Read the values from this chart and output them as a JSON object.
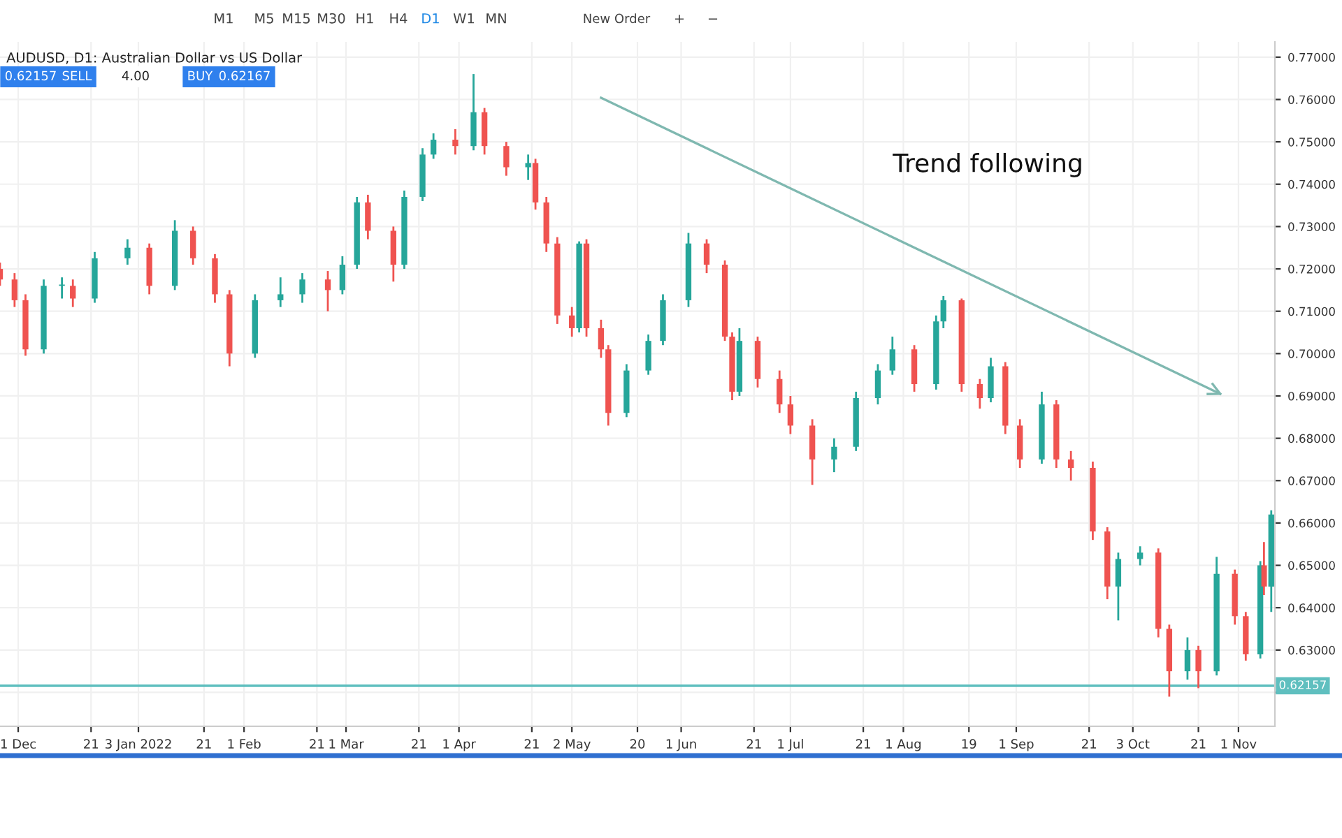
{
  "chart_data": {
    "type": "candlestick",
    "title": "AUDUSD, D1: Australian Dollar vs US Dollar",
    "annotations": [
      "M1",
      "M5",
      "M15",
      "M30",
      "H1",
      "H4",
      "D1",
      "W1",
      "MN",
      "New Order",
      "+",
      "−",
      "0.62157",
      "SELL",
      "4.00",
      "BUY",
      "0.62167",
      "Trend following"
    ],
    "x": [
      "2021-11-26",
      "2021-11-30",
      "2021-12-03",
      "2021-12-08",
      "2021-12-13",
      "2021-12-16",
      "2021-12-22",
      "2021-12-31",
      "2022-01-06",
      "2022-01-13",
      "2022-01-18",
      "2022-01-24",
      "2022-01-28",
      "2022-02-04",
      "2022-02-11",
      "2022-02-17",
      "2022-02-24",
      "2022-02-28",
      "2022-03-04",
      "2022-03-07",
      "2022-03-14",
      "2022-03-17",
      "2022-03-22",
      "2022-03-25",
      "2022-03-31",
      "2022-04-05",
      "2022-04-08",
      "2022-04-14",
      "2022-04-20",
      "2022-04-22",
      "2022-04-25",
      "2022-04-28",
      "2022-05-02",
      "2022-05-04",
      "2022-05-06",
      "2022-05-10",
      "2022-05-12",
      "2022-05-17",
      "2022-05-23",
      "2022-05-27",
      "2022-06-03",
      "2022-06-08",
      "2022-06-13",
      "2022-06-15",
      "2022-06-17",
      "2022-06-22",
      "2022-06-28",
      "2022-07-01",
      "2022-07-07",
      "2022-07-13",
      "2022-07-19",
      "2022-07-25",
      "2022-07-29",
      "2022-08-04",
      "2022-08-10",
      "2022-08-12",
      "2022-08-17",
      "2022-08-22",
      "2022-08-25",
      "2022-08-29",
      "2022-09-02",
      "2022-09-08",
      "2022-09-12",
      "2022-09-16",
      "2022-09-22",
      "2022-09-26",
      "2022-09-29",
      "2022-10-05",
      "2022-10-10",
      "2022-10-13",
      "2022-10-18",
      "2022-10-21",
      "2022-10-26",
      "2022-10-31",
      "2022-11-03",
      "2022-11-07",
      "2022-11-08",
      "2022-11-10"
    ],
    "ohlc": [
      [
        0.72,
        0.7215,
        0.716,
        0.7175
      ],
      [
        0.7175,
        0.719,
        0.711,
        0.7126
      ],
      [
        0.7126,
        0.714,
        0.6995,
        0.701
      ],
      [
        0.701,
        0.7175,
        0.7,
        0.716
      ],
      [
        0.716,
        0.718,
        0.713,
        0.716
      ],
      [
        0.716,
        0.7175,
        0.711,
        0.713
      ],
      [
        0.713,
        0.724,
        0.712,
        0.7225
      ],
      [
        0.7225,
        0.727,
        0.721,
        0.725
      ],
      [
        0.725,
        0.726,
        0.714,
        0.716
      ],
      [
        0.716,
        0.7315,
        0.715,
        0.729
      ],
      [
        0.729,
        0.73,
        0.721,
        0.7225
      ],
      [
        0.7225,
        0.7235,
        0.712,
        0.714
      ],
      [
        0.714,
        0.715,
        0.697,
        0.7
      ],
      [
        0.7,
        0.714,
        0.699,
        0.7126
      ],
      [
        0.7126,
        0.718,
        0.711,
        0.714
      ],
      [
        0.714,
        0.719,
        0.712,
        0.7175
      ],
      [
        0.7175,
        0.7195,
        0.71,
        0.715
      ],
      [
        0.715,
        0.723,
        0.714,
        0.721
      ],
      [
        0.721,
        0.737,
        0.72,
        0.7357
      ],
      [
        0.7357,
        0.7375,
        0.727,
        0.729
      ],
      [
        0.729,
        0.73,
        0.717,
        0.721
      ],
      [
        0.721,
        0.7385,
        0.72,
        0.737
      ],
      [
        0.737,
        0.7485,
        0.736,
        0.747
      ],
      [
        0.747,
        0.752,
        0.746,
        0.7505
      ],
      [
        0.7505,
        0.753,
        0.747,
        0.749
      ],
      [
        0.749,
        0.766,
        0.748,
        0.757
      ],
      [
        0.757,
        0.758,
        0.747,
        0.749
      ],
      [
        0.749,
        0.75,
        0.742,
        0.744
      ],
      [
        0.744,
        0.747,
        0.741,
        0.745
      ],
      [
        0.745,
        0.746,
        0.734,
        0.7357
      ],
      [
        0.7357,
        0.737,
        0.724,
        0.726
      ],
      [
        0.726,
        0.7275,
        0.707,
        0.709
      ],
      [
        0.709,
        0.711,
        0.704,
        0.706
      ],
      [
        0.706,
        0.7265,
        0.705,
        0.726
      ],
      [
        0.726,
        0.727,
        0.704,
        0.706
      ],
      [
        0.706,
        0.708,
        0.699,
        0.701
      ],
      [
        0.701,
        0.702,
        0.683,
        0.686
      ],
      [
        0.686,
        0.6975,
        0.685,
        0.696
      ],
      [
        0.696,
        0.7045,
        0.695,
        0.703
      ],
      [
        0.703,
        0.714,
        0.702,
        0.7126
      ],
      [
        0.7126,
        0.7285,
        0.711,
        0.726
      ],
      [
        0.726,
        0.727,
        0.719,
        0.721
      ],
      [
        0.721,
        0.722,
        0.703,
        0.704
      ],
      [
        0.704,
        0.705,
        0.689,
        0.691
      ],
      [
        0.691,
        0.706,
        0.69,
        0.703
      ],
      [
        0.703,
        0.704,
        0.692,
        0.694
      ],
      [
        0.694,
        0.696,
        0.686,
        0.688
      ],
      [
        0.688,
        0.69,
        0.681,
        0.683
      ],
      [
        0.683,
        0.6845,
        0.669,
        0.675
      ],
      [
        0.675,
        0.68,
        0.672,
        0.678
      ],
      [
        0.678,
        0.691,
        0.677,
        0.6895
      ],
      [
        0.6895,
        0.6975,
        0.688,
        0.696
      ],
      [
        0.696,
        0.704,
        0.695,
        0.701
      ],
      [
        0.701,
        0.702,
        0.691,
        0.6928
      ],
      [
        0.6928,
        0.709,
        0.6915,
        0.7076
      ],
      [
        0.7076,
        0.7136,
        0.706,
        0.7126
      ],
      [
        0.7126,
        0.713,
        0.691,
        0.6928
      ],
      [
        0.6928,
        0.694,
        0.687,
        0.6895
      ],
      [
        0.6895,
        0.699,
        0.6885,
        0.697
      ],
      [
        0.697,
        0.698,
        0.681,
        0.683
      ],
      [
        0.683,
        0.6845,
        0.673,
        0.675
      ],
      [
        0.675,
        0.691,
        0.674,
        0.688
      ],
      [
        0.688,
        0.689,
        0.673,
        0.675
      ],
      [
        0.675,
        0.677,
        0.67,
        0.673
      ],
      [
        0.673,
        0.6745,
        0.656,
        0.658
      ],
      [
        0.658,
        0.659,
        0.642,
        0.645
      ],
      [
        0.645,
        0.653,
        0.637,
        0.6515
      ],
      [
        0.6515,
        0.6545,
        0.65,
        0.653
      ],
      [
        0.653,
        0.654,
        0.633,
        0.635
      ],
      [
        0.635,
        0.636,
        0.619,
        0.625
      ],
      [
        0.625,
        0.633,
        0.623,
        0.63
      ],
      [
        0.63,
        0.631,
        0.621,
        0.625
      ],
      [
        0.625,
        0.652,
        0.624,
        0.648
      ],
      [
        0.648,
        0.649,
        0.636,
        0.638
      ],
      [
        0.638,
        0.639,
        0.6275,
        0.629
      ],
      [
        0.629,
        0.651,
        0.628,
        0.65
      ],
      [
        0.65,
        0.6555,
        0.643,
        0.645
      ],
      [
        0.645,
        0.663,
        0.639,
        0.662
      ]
    ],
    "colors": [
      "#ef5350",
      "#ef5350",
      "#ef5350",
      "#26a69a",
      "#26a69a",
      "#ef5350",
      "#26a69a",
      "#26a69a",
      "#ef5350",
      "#26a69a",
      "#ef5350",
      "#ef5350",
      "#ef5350",
      "#26a69a",
      "#26a69a",
      "#26a69a",
      "#ef5350",
      "#26a69a",
      "#26a69a",
      "#ef5350",
      "#ef5350",
      "#26a69a",
      "#26a69a",
      "#26a69a",
      "#ef5350",
      "#26a69a",
      "#ef5350",
      "#ef5350",
      "#26a69a",
      "#ef5350",
      "#ef5350",
      "#ef5350",
      "#ef5350",
      "#26a69a",
      "#ef5350",
      "#ef5350",
      "#ef5350",
      "#26a69a",
      "#26a69a",
      "#26a69a",
      "#26a69a",
      "#ef5350",
      "#ef5350",
      "#ef5350",
      "#26a69a",
      "#ef5350",
      "#ef5350",
      "#ef5350",
      "#ef5350",
      "#26a69a",
      "#26a69a",
      "#26a69a",
      "#26a69a",
      "#ef5350",
      "#26a69a",
      "#26a69a",
      "#ef5350",
      "#ef5350",
      "#26a69a",
      "#ef5350",
      "#ef5350",
      "#26a69a",
      "#ef5350",
      "#ef5350",
      "#ef5350",
      "#ef5350",
      "#26a69a",
      "#26a69a",
      "#ef5350",
      "#ef5350",
      "#26a69a",
      "#ef5350",
      "#26a69a",
      "#ef5350",
      "#ef5350",
      "#26a69a",
      "#ef5350",
      "#26a69a"
    ],
    "series": [
      {
        "type": "line",
        "color": "#7fb8b0",
        "x": [
          "2022-05-10",
          "2022-10-27"
        ],
        "values": [
          0.7604,
          0.6905
        ]
      }
    ],
    "xlim": [
      "2021-11-26",
      "2022-11-11"
    ],
    "xticks": [
      {
        "value": "2021-12-01",
        "label": "1 Dec"
      },
      {
        "value": "2021-12-21",
        "label": "21"
      },
      {
        "value": "2022-01-03",
        "label": "3 Jan 2022"
      },
      {
        "value": "2022-01-21",
        "label": "21"
      },
      {
        "value": "2022-02-01",
        "label": "1 Feb"
      },
      {
        "value": "2022-02-21",
        "label": "21"
      },
      {
        "value": "2022-03-01",
        "label": "1 Mar"
      },
      {
        "value": "2022-03-21",
        "label": "21"
      },
      {
        "value": "2022-04-01",
        "label": "1 Apr"
      },
      {
        "value": "2022-04-21",
        "label": "21"
      },
      {
        "value": "2022-05-02",
        "label": "2 May"
      },
      {
        "value": "2022-05-20",
        "label": "20"
      },
      {
        "value": "2022-06-01",
        "label": "1 Jun"
      },
      {
        "value": "2022-06-21",
        "label": "21"
      },
      {
        "value": "2022-07-01",
        "label": "1 Jul"
      },
      {
        "value": "2022-07-21",
        "label": "21"
      },
      {
        "value": "2022-08-01",
        "label": "1 Aug"
      },
      {
        "value": "2022-08-19",
        "label": "19"
      },
      {
        "value": "2022-09-01",
        "label": "1 Sep"
      },
      {
        "value": "2022-09-21",
        "label": "21"
      },
      {
        "value": "2022-10-03",
        "label": "3 Oct"
      },
      {
        "value": "2022-10-21",
        "label": "21"
      },
      {
        "value": "2022-11-01",
        "label": "1 Nov"
      }
    ],
    "ylim": [
      0.612,
      0.7736
    ],
    "yticks": [
      {
        "value": 0.62,
        "label": null
      },
      {
        "value": 0.63,
        "label": "0.63000"
      },
      {
        "value": 0.64,
        "label": "0.64000"
      },
      {
        "value": 0.65,
        "label": "0.65000"
      },
      {
        "value": 0.66,
        "label": "0.66000"
      },
      {
        "value": 0.67,
        "label": "0.67000"
      },
      {
        "value": 0.68,
        "label": "0.68000"
      },
      {
        "value": 0.69,
        "label": "0.69000"
      },
      {
        "value": 0.7,
        "label": "0.70000"
      },
      {
        "value": 0.71,
        "label": "0.71000"
      },
      {
        "value": 0.72,
        "label": "0.72000"
      },
      {
        "value": 0.73,
        "label": "0.73000"
      },
      {
        "value": 0.74,
        "label": "0.74000"
      },
      {
        "value": 0.75,
        "label": "0.75000"
      },
      {
        "value": 0.76,
        "label": "0.76000"
      },
      {
        "value": 0.77,
        "label": "0.77000"
      }
    ],
    "ref_lines": [
      {
        "axis": "y",
        "value": 0.62157,
        "label": "0.62157",
        "color": "#5fbfbf"
      }
    ],
    "grid": true
  }
}
